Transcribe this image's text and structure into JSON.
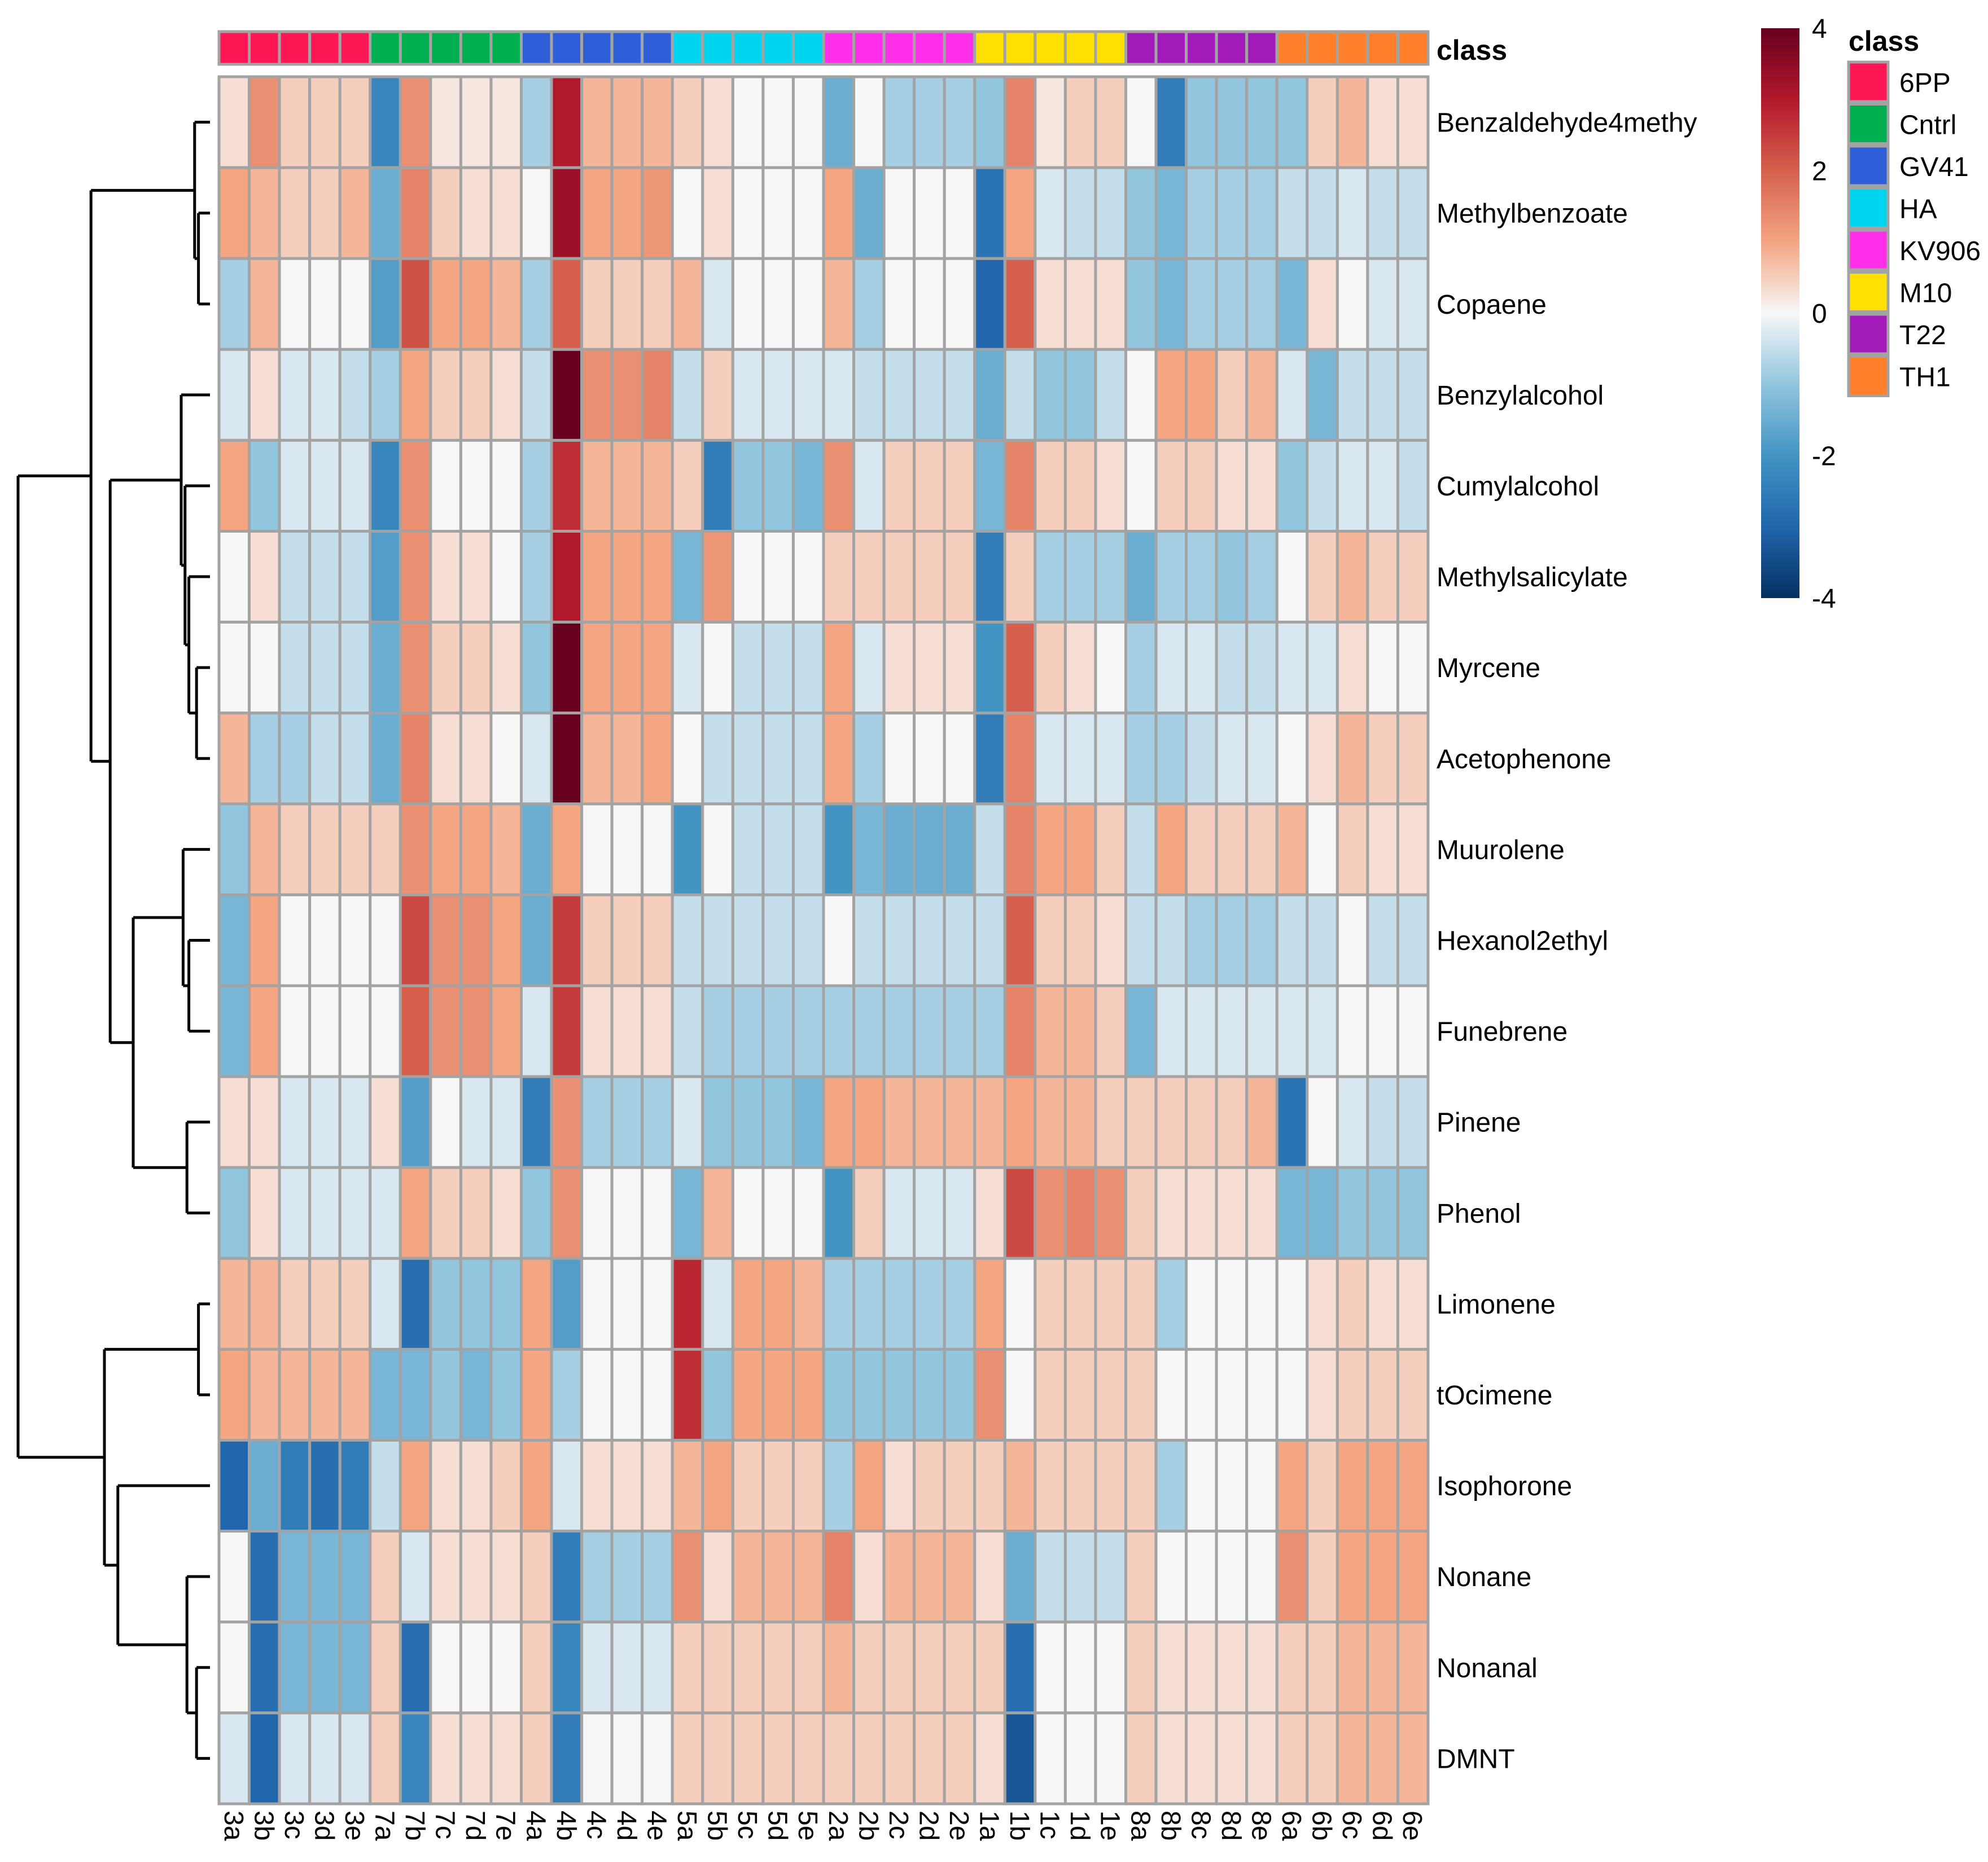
{
  "chart_data": {
    "type": "heatmap",
    "columns": [
      "3a",
      "3b",
      "3c",
      "3d",
      "3e",
      "7a",
      "7b",
      "7c",
      "7d",
      "7e",
      "4a",
      "4b",
      "4c",
      "4d",
      "4e",
      "5a",
      "5b",
      "5c",
      "5d",
      "5e",
      "2a",
      "2b",
      "2c",
      "2d",
      "2e",
      "1a",
      "1b",
      "1c",
      "1d",
      "1e",
      "8a",
      "8b",
      "8c",
      "8d",
      "8e",
      "6a",
      "6b",
      "6c",
      "6d",
      "6e"
    ],
    "column_classes": [
      "6PP",
      "6PP",
      "6PP",
      "6PP",
      "6PP",
      "Cntrl",
      "Cntrl",
      "Cntrl",
      "Cntrl",
      "Cntrl",
      "GV41",
      "GV41",
      "GV41",
      "GV41",
      "GV41",
      "HA",
      "HA",
      "HA",
      "HA",
      "HA",
      "KV906",
      "KV906",
      "KV906",
      "KV906",
      "KV906",
      "M10",
      "M10",
      "M10",
      "M10",
      "M10",
      "T22",
      "T22",
      "T22",
      "T22",
      "T22",
      "TH1",
      "TH1",
      "TH1",
      "TH1",
      "TH1"
    ],
    "rows": [
      "Benzaldehyde4methy",
      "Methylbenzoate",
      "Copaene",
      "Benzylalcohol",
      "Cumylalcohol",
      "Methylsalicylate",
      "Myrcene",
      "Acetophenone",
      "Muurolene",
      "Hexanol2ethyl",
      "Funebrene",
      "Pinene",
      "Phenol",
      "Limonene",
      "tOcimene",
      "Isophorone",
      "Nonane",
      "Nonanal",
      "DMNT"
    ],
    "values": [
      [
        0.3,
        1.3,
        0.5,
        0.5,
        0.5,
        -2.3,
        1.3,
        0.2,
        0.2,
        0.2,
        -0.8,
        3.0,
        0.8,
        0.8,
        0.8,
        0.5,
        0.3,
        0.0,
        0.0,
        0.0,
        -1.5,
        0.0,
        -0.8,
        -0.8,
        -0.8,
        -1.0,
        1.5,
        0.2,
        0.5,
        0.5,
        0.0,
        -2.5,
        -1.0,
        -1.0,
        -1.0,
        -1.0,
        0.5,
        0.8,
        0.3,
        0.3
      ],
      [
        1.0,
        0.8,
        0.5,
        0.5,
        0.8,
        -1.5,
        1.5,
        0.5,
        0.3,
        0.3,
        0.0,
        3.3,
        1.0,
        1.0,
        1.2,
        0.0,
        0.3,
        0.0,
        0.0,
        0.0,
        1.0,
        -1.5,
        0.0,
        0.0,
        0.0,
        -2.7,
        1.0,
        -0.3,
        -0.5,
        -0.5,
        -1.0,
        -1.3,
        -0.8,
        -0.8,
        -0.8,
        -0.5,
        -0.5,
        -0.3,
        -0.5,
        -0.5
      ],
      [
        -0.8,
        0.8,
        0.0,
        0.0,
        0.0,
        -1.8,
        2.2,
        1.0,
        1.0,
        0.8,
        -0.8,
        2.0,
        0.5,
        0.5,
        0.5,
        0.8,
        -0.3,
        0.0,
        0.0,
        0.0,
        0.8,
        -0.8,
        0.0,
        0.0,
        0.0,
        -3.0,
        2.0,
        0.3,
        0.3,
        0.3,
        -1.0,
        -1.3,
        -0.8,
        -0.8,
        -0.8,
        -1.3,
        0.3,
        0.0,
        -0.3,
        -0.3
      ],
      [
        -0.3,
        0.3,
        -0.3,
        -0.3,
        -0.5,
        -0.8,
        1.0,
        0.5,
        0.5,
        0.3,
        -0.5,
        4.0,
        1.3,
        1.3,
        1.5,
        -0.5,
        0.5,
        -0.3,
        -0.3,
        -0.3,
        -0.3,
        -0.5,
        -0.5,
        -0.5,
        -0.5,
        -1.5,
        -0.5,
        -1.0,
        -1.0,
        -0.5,
        0.0,
        1.0,
        1.0,
        0.5,
        0.8,
        -0.3,
        -1.3,
        -0.5,
        -0.5,
        -0.5
      ],
      [
        1.0,
        -1.0,
        -0.3,
        -0.3,
        -0.3,
        -2.3,
        1.3,
        0.0,
        0.0,
        0.0,
        -0.8,
        2.7,
        0.8,
        0.8,
        0.8,
        0.5,
        -2.5,
        -1.0,
        -1.0,
        -1.3,
        1.3,
        -0.3,
        0.5,
        0.5,
        0.5,
        -1.3,
        1.5,
        0.5,
        0.5,
        0.3,
        0.0,
        0.5,
        0.5,
        0.3,
        0.3,
        -1.0,
        -0.5,
        -0.3,
        -0.3,
        -0.5
      ],
      [
        0.0,
        0.3,
        -0.5,
        -0.5,
        -0.5,
        -1.8,
        1.3,
        0.3,
        0.3,
        0.0,
        -0.8,
        3.0,
        1.0,
        1.0,
        1.0,
        -1.3,
        1.2,
        0.0,
        0.0,
        0.0,
        0.5,
        0.5,
        0.5,
        0.5,
        0.5,
        -2.5,
        0.5,
        -0.8,
        -0.8,
        -0.8,
        -1.5,
        -0.8,
        -0.8,
        -1.0,
        -0.8,
        0.0,
        0.5,
        0.8,
        0.5,
        0.5
      ],
      [
        0.0,
        0.0,
        -0.5,
        -0.5,
        -0.5,
        -1.5,
        1.3,
        0.5,
        0.5,
        0.3,
        -1.0,
        4.0,
        1.0,
        1.0,
        1.0,
        -0.3,
        0.0,
        -0.5,
        -0.5,
        -0.5,
        1.0,
        -0.3,
        0.3,
        0.3,
        0.3,
        -2.0,
        2.0,
        0.5,
        0.3,
        0.0,
        -0.8,
        -0.3,
        -0.3,
        -0.5,
        -0.5,
        -0.3,
        -0.3,
        0.3,
        0.0,
        0.0
      ],
      [
        0.8,
        -0.8,
        -0.8,
        -0.5,
        -0.5,
        -1.5,
        1.5,
        0.3,
        0.3,
        0.0,
        -0.3,
        4.0,
        0.8,
        0.8,
        1.0,
        0.0,
        -0.5,
        -0.5,
        -0.5,
        -0.5,
        1.0,
        -0.8,
        0.0,
        0.0,
        0.0,
        -2.5,
        1.5,
        -0.3,
        -0.3,
        -0.3,
        -0.8,
        -0.8,
        -0.5,
        -0.3,
        -0.3,
        0.0,
        0.3,
        0.8,
        0.5,
        0.5
      ],
      [
        -1.0,
        0.8,
        0.5,
        0.5,
        0.5,
        0.5,
        1.3,
        1.0,
        1.0,
        0.8,
        -1.5,
        1.0,
        0.0,
        0.0,
        0.0,
        -2.0,
        0.0,
        -0.5,
        -0.5,
        -0.5,
        -2.0,
        -1.3,
        -1.5,
        -1.5,
        -1.5,
        -0.5,
        1.5,
        1.0,
        1.0,
        0.5,
        -0.5,
        1.0,
        0.5,
        0.5,
        0.5,
        0.8,
        0.0,
        0.5,
        0.3,
        0.3
      ],
      [
        -1.3,
        1.0,
        0.0,
        0.0,
        0.0,
        0.0,
        2.3,
        1.3,
        1.3,
        1.0,
        -1.5,
        2.5,
        0.5,
        0.5,
        0.5,
        -0.5,
        -0.5,
        -0.5,
        -0.5,
        -0.5,
        0.0,
        -0.5,
        -0.5,
        -0.5,
        -0.5,
        -0.5,
        2.0,
        0.5,
        0.5,
        0.3,
        -0.5,
        -0.5,
        -0.8,
        -0.8,
        -0.8,
        -0.5,
        -0.5,
        0.0,
        -0.5,
        -0.5
      ],
      [
        -1.3,
        1.0,
        0.0,
        0.0,
        0.0,
        0.0,
        2.0,
        1.3,
        1.3,
        1.0,
        -0.3,
        2.5,
        0.3,
        0.3,
        0.3,
        -0.5,
        -0.8,
        -0.8,
        -0.8,
        -0.8,
        -0.8,
        -0.8,
        -0.8,
        -0.8,
        -0.8,
        -0.8,
        1.5,
        0.8,
        0.8,
        0.5,
        -1.3,
        -0.3,
        -0.3,
        -0.3,
        -0.3,
        -0.3,
        -0.3,
        0.0,
        0.0,
        0.0
      ],
      [
        0.3,
        0.3,
        -0.3,
        -0.3,
        -0.3,
        0.3,
        -1.8,
        0.0,
        -0.3,
        -0.3,
        -2.5,
        1.3,
        -0.8,
        -0.8,
        -0.8,
        -0.3,
        -1.0,
        -1.0,
        -1.0,
        -1.3,
        1.0,
        1.0,
        0.8,
        0.8,
        0.8,
        0.8,
        1.0,
        0.8,
        0.8,
        0.5,
        0.5,
        0.5,
        0.5,
        0.5,
        0.8,
        -2.7,
        0.0,
        -0.3,
        -0.5,
        -0.5
      ],
      [
        -1.0,
        0.3,
        -0.3,
        -0.3,
        -0.3,
        -0.3,
        1.0,
        0.5,
        0.5,
        0.3,
        -1.0,
        1.3,
        0.0,
        0.0,
        0.0,
        -1.3,
        0.8,
        0.0,
        0.0,
        0.0,
        -2.0,
        0.5,
        -0.3,
        -0.3,
        -0.3,
        0.3,
        2.3,
        1.3,
        1.5,
        1.3,
        0.5,
        0.3,
        0.3,
        0.3,
        0.3,
        -1.3,
        -1.3,
        -1.0,
        -1.0,
        -1.0
      ],
      [
        0.8,
        0.8,
        0.5,
        0.5,
        0.5,
        -0.3,
        -2.8,
        -1.0,
        -1.0,
        -1.0,
        1.0,
        -1.8,
        0.0,
        0.0,
        0.0,
        2.8,
        -0.3,
        1.0,
        1.0,
        0.8,
        -0.8,
        -0.8,
        -0.8,
        -0.8,
        -0.8,
        1.0,
        0.0,
        0.5,
        0.5,
        0.5,
        0.5,
        -0.8,
        0.0,
        0.0,
        0.0,
        0.0,
        0.3,
        0.5,
        0.3,
        0.3
      ],
      [
        1.0,
        0.8,
        0.8,
        0.8,
        0.8,
        -1.3,
        -1.3,
        -1.0,
        -1.3,
        -1.0,
        1.0,
        -0.8,
        0.0,
        0.0,
        0.0,
        2.7,
        -1.0,
        1.0,
        1.0,
        1.0,
        -1.0,
        -1.0,
        -1.0,
        -1.0,
        -1.0,
        1.3,
        0.0,
        0.5,
        0.5,
        0.5,
        0.5,
        0.0,
        0.0,
        0.0,
        0.0,
        0.0,
        0.3,
        0.5,
        0.5,
        0.5
      ],
      [
        -3.0,
        -1.5,
        -2.5,
        -2.8,
        -2.5,
        -0.5,
        1.0,
        0.3,
        0.3,
        0.5,
        1.0,
        -0.3,
        0.3,
        0.3,
        0.3,
        0.8,
        1.0,
        0.5,
        0.5,
        0.5,
        -0.8,
        1.0,
        0.3,
        0.5,
        0.5,
        0.5,
        0.8,
        0.5,
        0.5,
        0.5,
        0.5,
        -0.8,
        0.0,
        0.0,
        0.0,
        1.0,
        0.5,
        1.0,
        1.0,
        1.0
      ],
      [
        0.0,
        -2.8,
        -1.3,
        -1.3,
        -1.3,
        0.5,
        -0.3,
        0.3,
        0.3,
        0.3,
        0.5,
        -2.5,
        -0.8,
        -0.8,
        -0.8,
        1.3,
        0.3,
        0.8,
        0.8,
        0.8,
        1.5,
        0.3,
        0.8,
        0.8,
        0.8,
        0.3,
        -1.5,
        -0.5,
        -0.5,
        -0.5,
        0.5,
        0.0,
        0.0,
        0.0,
        0.0,
        1.3,
        0.5,
        1.0,
        1.0,
        1.0
      ],
      [
        0.0,
        -2.8,
        -1.3,
        -1.3,
        -1.3,
        0.5,
        -2.8,
        0.0,
        0.0,
        0.0,
        0.5,
        -2.3,
        -0.3,
        -0.3,
        -0.3,
        0.5,
        0.5,
        0.5,
        0.5,
        0.5,
        0.8,
        0.5,
        0.5,
        0.5,
        0.5,
        0.5,
        -2.8,
        0.0,
        0.0,
        0.0,
        0.5,
        0.3,
        0.3,
        0.3,
        0.3,
        0.5,
        0.5,
        0.8,
        0.8,
        0.8
      ],
      [
        -0.3,
        -3.0,
        -0.3,
        -0.3,
        -0.3,
        0.5,
        -2.3,
        0.3,
        0.3,
        0.3,
        0.5,
        -2.5,
        0.0,
        0.0,
        0.0,
        0.5,
        0.5,
        0.5,
        0.5,
        0.5,
        0.5,
        0.5,
        0.5,
        0.5,
        0.5,
        0.3,
        -3.3,
        0.0,
        0.0,
        0.0,
        0.5,
        0.3,
        0.3,
        0.3,
        0.3,
        0.5,
        0.5,
        0.8,
        0.8,
        0.8
      ]
    ],
    "color_scale": {
      "min": -4,
      "max": 4,
      "ticks": [
        4,
        2,
        0,
        -2,
        -4
      ]
    },
    "annotation_title": "class",
    "legend": {
      "title": "class",
      "entries": [
        {
          "label": "6PP",
          "color": "#ff1654"
        },
        {
          "label": "Cntrl",
          "color": "#00b050"
        },
        {
          "label": "GV41",
          "color": "#2e5fd8"
        },
        {
          "label": "HA",
          "color": "#00d5f0"
        },
        {
          "label": "KV906",
          "color": "#ff2ee8"
        },
        {
          "label": "M10",
          "color": "#ffe000"
        },
        {
          "label": "T22",
          "color": "#a31aba"
        },
        {
          "label": "TH1",
          "color": "#ff7f2a"
        }
      ]
    },
    "dendrogram": "rows"
  },
  "colors": {
    "high": "#67001f",
    "mid_high": "#f4a582",
    "mid": "#f7f7f7",
    "mid_low": "#92c5de",
    "low": "#053061",
    "grid": "#a3a3a3",
    "line": "#000000"
  }
}
